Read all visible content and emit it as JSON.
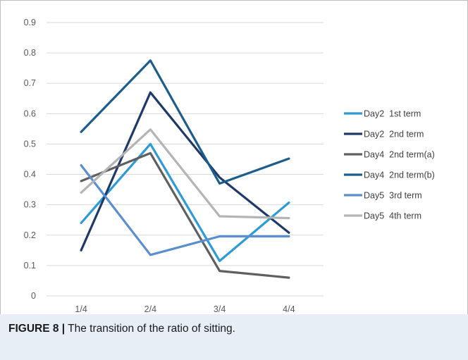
{
  "chart_data": {
    "type": "line",
    "categories": [
      "1/4",
      "2/4",
      "3/4",
      "4/4"
    ],
    "ylim": [
      0,
      0.9
    ],
    "yticks": [
      "0",
      "0.1",
      "0.2",
      "0.3",
      "0.4",
      "0.5",
      "0.6",
      "0.7",
      "0.8",
      "0.9"
    ],
    "grid": true,
    "legend_position": "right",
    "series": [
      {
        "name": "Day2  1st term",
        "color": "#2e9bd6",
        "values": [
          0.24,
          0.5,
          0.115,
          0.307
        ]
      },
      {
        "name": "Day2  2nd term",
        "color": "#1f3a68",
        "values": [
          0.15,
          0.67,
          0.39,
          0.208
        ]
      },
      {
        "name": "Day4  2nd term(a)",
        "color": "#5f5f5f",
        "values": [
          0.378,
          0.47,
          0.082,
          0.06
        ]
      },
      {
        "name": "Day4  2nd term(b)",
        "color": "#1c5d8c",
        "values": [
          0.54,
          0.775,
          0.37,
          0.452
        ]
      },
      {
        "name": "Day5  3rd term",
        "color": "#5b8dd1",
        "values": [
          0.43,
          0.135,
          0.196,
          0.196
        ]
      },
      {
        "name": "Day5  4th term",
        "color": "#b4b4b4",
        "values": [
          0.34,
          0.548,
          0.262,
          0.256
        ]
      }
    ]
  },
  "caption": {
    "label": "FIGURE 8 |",
    "text": " The transition of the ratio of sitting."
  }
}
